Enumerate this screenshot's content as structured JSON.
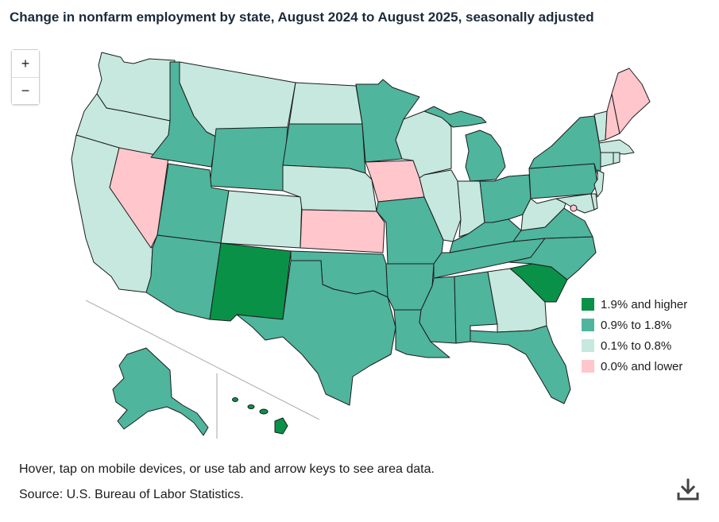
{
  "title": "Change in nonfarm employment by state, August 2024 to August 2025, seasonally adjusted",
  "zoom": {
    "in_label": "+",
    "out_label": "−"
  },
  "legend": [
    {
      "id": "c1",
      "label": "1.9% and higher",
      "color": "#0a9148"
    },
    {
      "id": "c2",
      "label": "0.9% to 1.8%",
      "color": "#4fb59d"
    },
    {
      "id": "c3",
      "label": "0.1% to 0.8%",
      "color": "#c6e8de"
    },
    {
      "id": "c4",
      "label": "0.0% and lower",
      "color": "#ffc6cc"
    }
  ],
  "states": {
    "WA": "c3",
    "OR": "c3",
    "CA": "c3",
    "NV": "c4",
    "ID": "c2",
    "MT": "c3",
    "WY": "c2",
    "UT": "c2",
    "AZ": "c2",
    "CO": "c3",
    "NM": "c1",
    "ND": "c3",
    "SD": "c2",
    "NE": "c3",
    "KS": "c4",
    "OK": "c2",
    "TX": "c2",
    "MN": "c2",
    "IA": "c4",
    "MO": "c2",
    "AR": "c2",
    "LA": "c2",
    "WI": "c3",
    "IL": "c3",
    "MI": "c2",
    "IN": "c3",
    "OH": "c2",
    "KY": "c2",
    "TN": "c2",
    "MS": "c2",
    "AL": "c2",
    "GA": "c3",
    "FL": "c2",
    "SC": "c1",
    "NC": "c2",
    "VA": "c2",
    "WV": "c3",
    "PA": "c2",
    "NY": "c2",
    "VT": "c3",
    "NH": "c4",
    "ME": "c4",
    "MA": "c3",
    "CT": "c3",
    "RI": "c3",
    "NJ": "c3",
    "DE": "c3",
    "MD": "c3",
    "DC": "c4",
    "AK": "c2",
    "HI": "c1"
  },
  "footer": {
    "note": "Hover, tap on mobile devices, or use tab and arrow keys to see area data.",
    "source": "Source: U.S. Bureau of Labor Statistics."
  }
}
